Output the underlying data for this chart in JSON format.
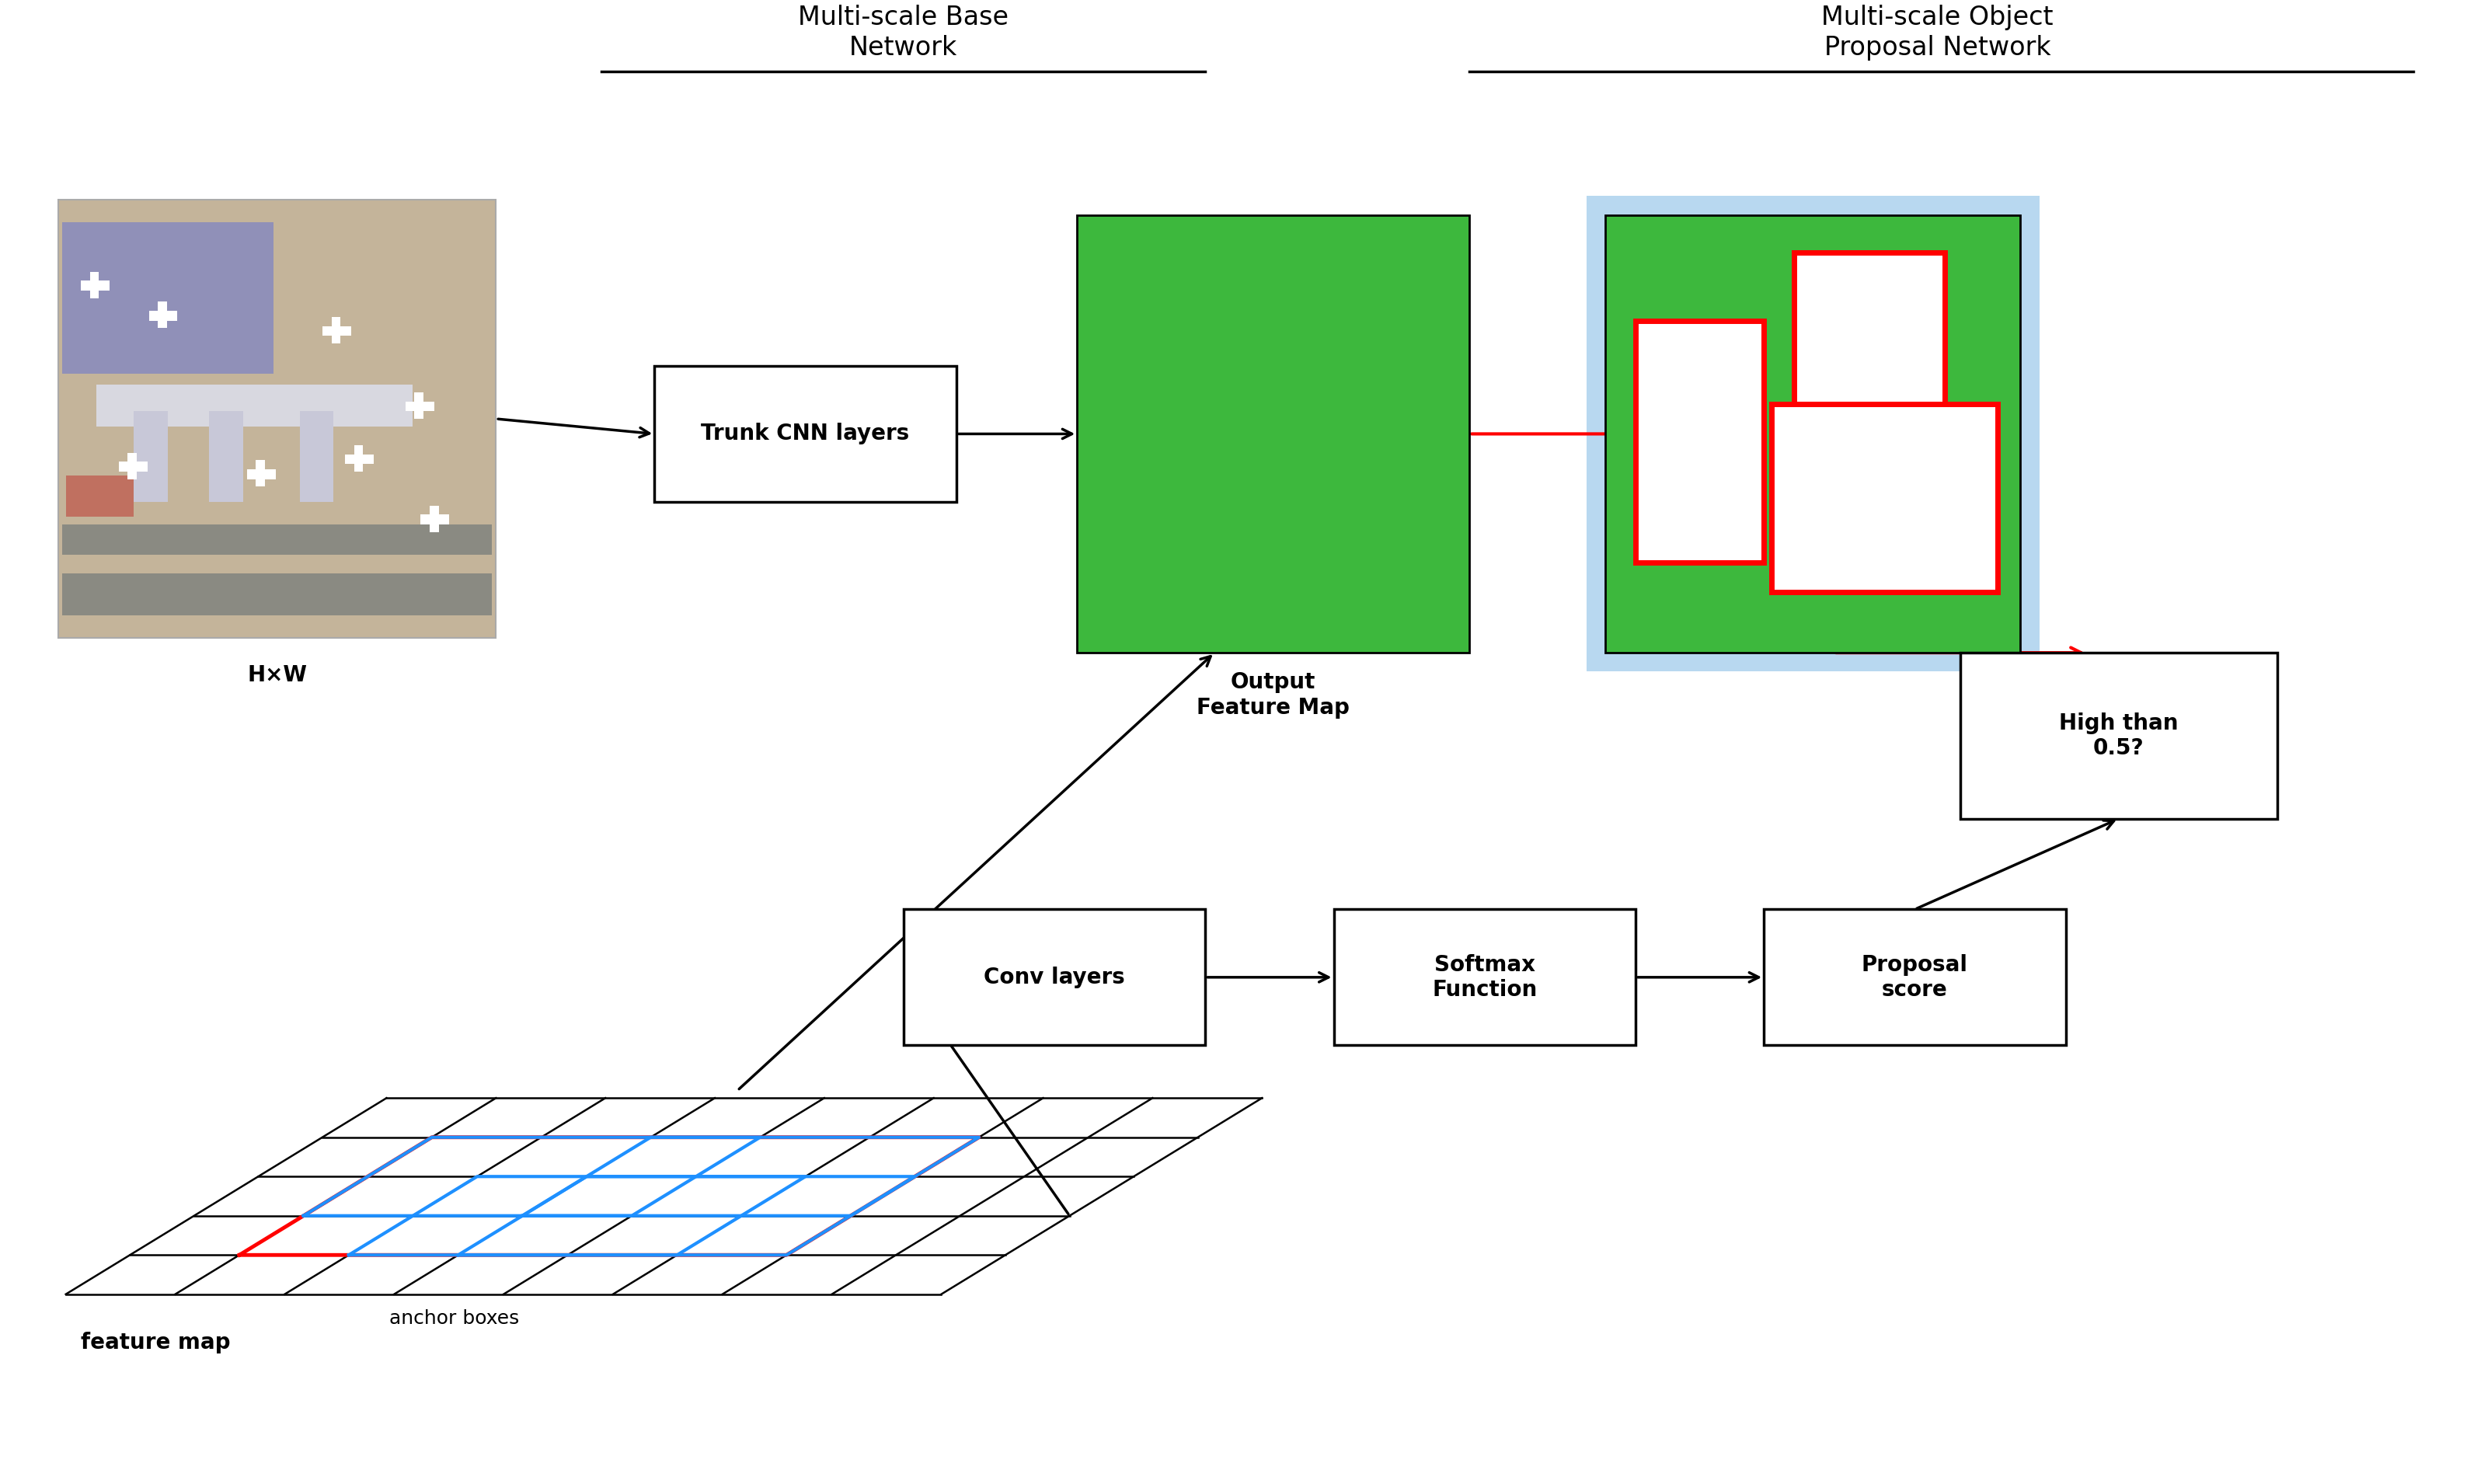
{
  "title_base_network": "Multi-scale Base\nNetwork",
  "title_proposal_network": "Multi-scale Object\nProposal Network",
  "label_hxw": "H×W",
  "label_trunk": "Trunk CNN layers",
  "label_output_fm": "Output\nFeature Map",
  "label_conv": "Conv layers",
  "label_softmax": "Softmax\nFunction",
  "label_proposal": "Proposal\nscore",
  "label_high": "High than\n0.5?",
  "label_feature_map": "feature map",
  "label_anchor": "anchor boxes",
  "green_color": "#3DB83D",
  "light_blue_bg": "#B8D8F0",
  "red_color": "#FF0000",
  "blue_color": "#1E90FF",
  "black_color": "#000000",
  "white_color": "#FFFFFF",
  "bg_color": "#FFFFFF",
  "font_size_title": 24,
  "font_size_label": 20,
  "font_size_small": 18
}
